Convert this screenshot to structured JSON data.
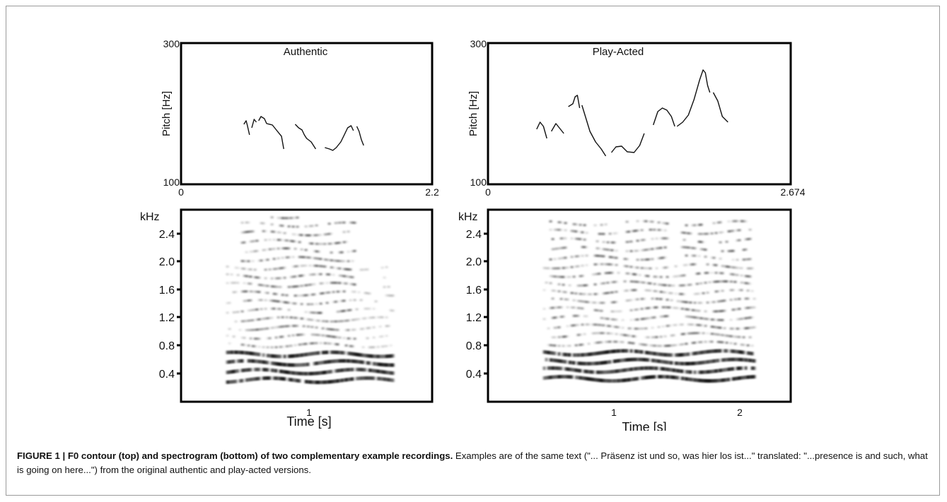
{
  "figure": {
    "panels": [
      {
        "title": "Authentic",
        "pitch": {
          "y_label": "Pitch [Hz]",
          "y_max_label": "300",
          "y_min_label": "100",
          "x_start_label": "0",
          "x_end_label": "2.2"
        },
        "spectrogram": {
          "unit_label": "kHz",
          "y_ticks": [
            "2.4",
            "2.0",
            "1.6",
            "1.2",
            "0.8",
            "0.4"
          ],
          "x_ticks": [
            "1"
          ],
          "x_label": "Time [s]"
        }
      },
      {
        "title": "Play-Acted",
        "pitch": {
          "y_label": "Pitch [Hz]",
          "y_max_label": "300",
          "y_min_label": "100",
          "x_start_label": "0",
          "x_end_label": "2.674"
        },
        "spectrogram": {
          "unit_label": "kHz",
          "y_ticks": [
            "2.4",
            "2.0",
            "1.6",
            "1.2",
            "0.8",
            "0.4"
          ],
          "x_ticks": [
            "1",
            "2"
          ],
          "x_label": "Time [s]"
        }
      }
    ]
  },
  "caption": {
    "label": "FIGURE 1 | F0 contour (top) and spectrogram (bottom) of two complementary example recordings.",
    "text": " Examples are of the same text (\"... Präsenz ist und so, was hier los ist...\" translated: \"...presence is and such, what is going on here...\") from the original authentic and play-acted versions."
  },
  "chart_data": [
    {
      "type": "line",
      "title": "Authentic",
      "ylabel": "Pitch [Hz]",
      "xlim": [
        0,
        2.2
      ],
      "ylim": [
        100,
        300
      ],
      "series": [
        {
          "points": [
            [
              0.55,
              185
            ],
            [
              0.57,
              190
            ],
            [
              0.58,
              184
            ],
            [
              0.6,
              170
            ]
          ]
        },
        {
          "points": [
            [
              0.62,
              180
            ],
            [
              0.64,
              192
            ],
            [
              0.66,
              188
            ]
          ]
        },
        {
          "points": [
            [
              0.68,
              190
            ],
            [
              0.7,
              196
            ],
            [
              0.73,
              193
            ],
            [
              0.75,
              186
            ],
            [
              0.8,
              184
            ],
            [
              0.84,
              176
            ],
            [
              0.88,
              168
            ],
            [
              0.9,
              150
            ]
          ]
        },
        {
          "points": [
            [
              1.0,
              185
            ],
            [
              1.03,
              180
            ],
            [
              1.06,
              177
            ],
            [
              1.08,
              170
            ],
            [
              1.1,
              165
            ],
            [
              1.14,
              160
            ],
            [
              1.18,
              150
            ]
          ]
        },
        {
          "points": [
            [
              1.26,
              152
            ],
            [
              1.3,
              150
            ],
            [
              1.33,
              148
            ],
            [
              1.36,
              152
            ],
            [
              1.4,
              160
            ],
            [
              1.43,
              170
            ],
            [
              1.46,
              180
            ],
            [
              1.49,
              183
            ],
            [
              1.51,
              176
            ]
          ]
        },
        {
          "points": [
            [
              1.54,
              182
            ],
            [
              1.56,
              175
            ],
            [
              1.58,
              163
            ],
            [
              1.6,
              155
            ]
          ]
        }
      ]
    },
    {
      "type": "line",
      "title": "Play-Acted",
      "ylabel": "Pitch [Hz]",
      "xlim": [
        0,
        2.674
      ],
      "ylim": [
        100,
        300
      ],
      "series": [
        {
          "points": [
            [
              0.43,
              178
            ],
            [
              0.46,
              188
            ],
            [
              0.49,
              182
            ],
            [
              0.52,
              165
            ]
          ]
        },
        {
          "points": [
            [
              0.56,
              175
            ],
            [
              0.6,
              186
            ],
            [
              0.64,
              178
            ],
            [
              0.67,
              172
            ]
          ]
        },
        {
          "points": [
            [
              0.71,
              210
            ],
            [
              0.75,
              214
            ],
            [
              0.77,
              224
            ],
            [
              0.79,
              226
            ],
            [
              0.81,
              208
            ]
          ]
        },
        {
          "points": [
            [
              0.83,
              212
            ],
            [
              0.86,
              196
            ],
            [
              0.9,
              175
            ],
            [
              0.95,
              160
            ],
            [
              1.0,
              150
            ],
            [
              1.04,
              140
            ]
          ]
        },
        {
          "points": [
            [
              1.09,
              145
            ],
            [
              1.13,
              153
            ],
            [
              1.18,
              154
            ],
            [
              1.23,
              146
            ],
            [
              1.29,
              145
            ],
            [
              1.34,
              155
            ],
            [
              1.38,
              172
            ]
          ]
        },
        {
          "points": [
            [
              1.46,
              184
            ],
            [
              1.5,
              203
            ],
            [
              1.54,
              208
            ],
            [
              1.58,
              205
            ],
            [
              1.62,
              196
            ],
            [
              1.65,
              182
            ]
          ]
        },
        {
          "points": [
            [
              1.67,
              182
            ],
            [
              1.72,
              188
            ],
            [
              1.77,
              198
            ],
            [
              1.82,
              220
            ],
            [
              1.87,
              248
            ],
            [
              1.9,
              262
            ],
            [
              1.92,
              258
            ],
            [
              1.94,
              240
            ],
            [
              1.96,
              230
            ]
          ]
        },
        {
          "points": [
            [
              1.99,
              230
            ],
            [
              2.03,
              218
            ],
            [
              2.07,
              196
            ],
            [
              2.12,
              188
            ]
          ]
        }
      ]
    }
  ]
}
